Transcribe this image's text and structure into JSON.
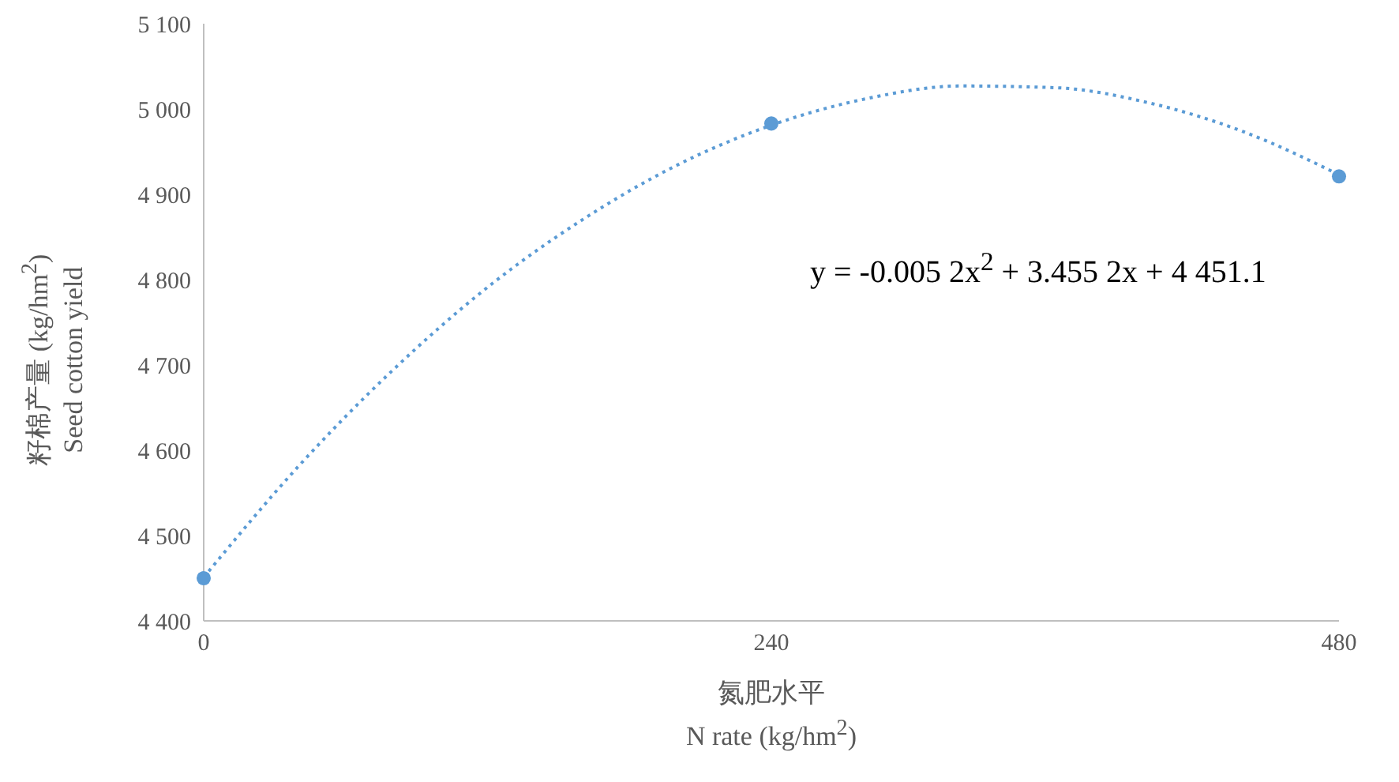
{
  "chart_data": {
    "type": "scatter",
    "xlabel": "氮肥水平\nN rate (kg/hm$^{2}$)",
    "ylabel": "籽棉产量 (kg/hm$^{2}$)\nSeed cotton yield",
    "x": [
      0,
      240,
      480
    ],
    "series": [
      {
        "color": "#5b9bd5",
        "values": [
          4450,
          4983,
          4921
        ],
        "marker": "circle"
      },
      {
        "type": "line",
        "color": "#5b9bd5",
        "line_style": "dotted",
        "marker": "none",
        "x": [
          0,
          40,
          80,
          120,
          160,
          200,
          240,
          280,
          320,
          360,
          400,
          440,
          480
        ],
        "values": [
          4451,
          4581,
          4694,
          4791,
          4870,
          4934,
          4981,
          5012,
          5027,
          5025,
          5007,
          4973,
          4923
        ]
      }
    ],
    "xlim": [
      0,
      480
    ],
    "xticks": [
      0,
      240,
      480
    ],
    "ylim": [
      4400,
      5100
    ],
    "yticks": [
      {
        "value": 4400,
        "label": "4 400"
      },
      {
        "value": 4500,
        "label": "4 500"
      },
      {
        "value": 4600,
        "label": "4 600"
      },
      {
        "value": 4700,
        "label": "4 700"
      },
      {
        "value": 4800,
        "label": "4 800"
      },
      {
        "value": 4900,
        "label": "4 900"
      },
      {
        "value": 5000,
        "label": "5 000"
      },
      {
        "value": 5100,
        "label": "5 100"
      }
    ],
    "grid": false,
    "legend": false,
    "annotations": [
      "y = -0.005 2x$^{2}$ + 3.455 2x + 4 451.1"
    ]
  }
}
